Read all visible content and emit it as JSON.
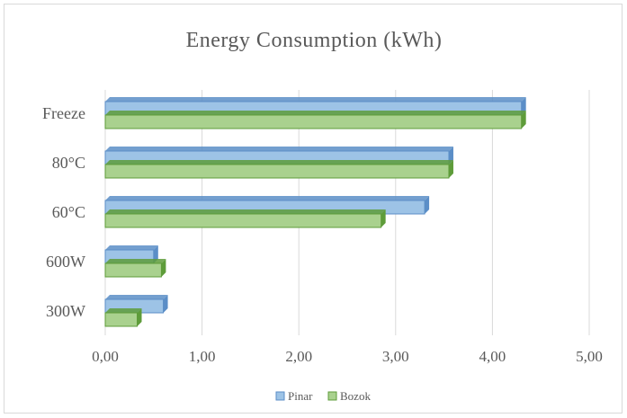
{
  "chart_data": {
    "type": "bar",
    "orientation": "horizontal",
    "style": "3d",
    "title": "Energy  Consumption  (kWh)",
    "categories": [
      "Freeze",
      "80°C",
      "60°C",
      "600W",
      "300W"
    ],
    "series": [
      {
        "name": "Pinar",
        "values": [
          4.3,
          3.55,
          3.3,
          0.5,
          0.6
        ],
        "color": "#9dc3e6",
        "edge": "#5b8ec7"
      },
      {
        "name": "Bozok",
        "values": [
          4.3,
          3.55,
          2.85,
          0.58,
          0.33
        ],
        "color": "#a9d18e",
        "edge": "#5e9c3a"
      }
    ],
    "xlim": [
      0,
      5
    ],
    "xticks": [
      "0,00",
      "1,00",
      "2,00",
      "3,00",
      "4,00",
      "5,00"
    ],
    "grid": true,
    "legend": "bottom"
  }
}
